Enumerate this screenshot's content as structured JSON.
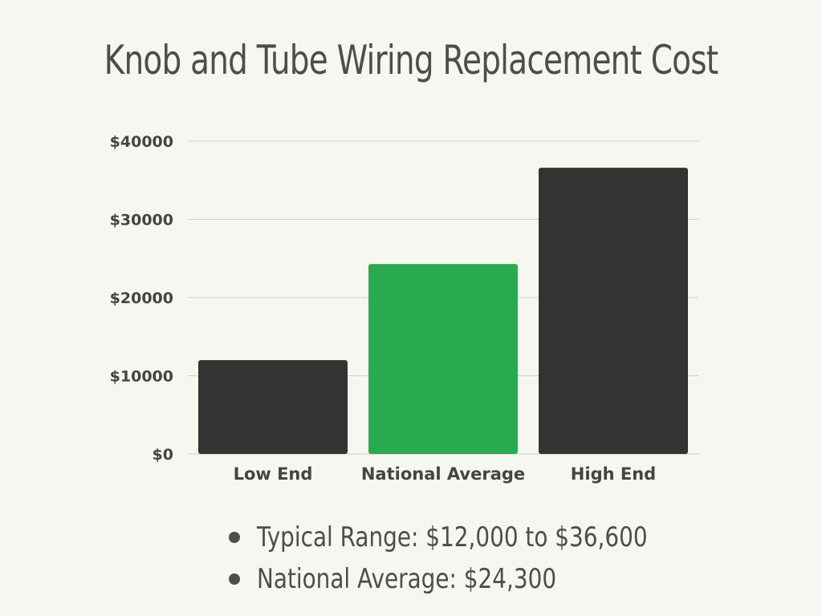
{
  "chart_data": {
    "type": "bar",
    "title": "Knob and Tube Wiring Replacement Cost",
    "xlabel": "",
    "ylabel": "",
    "categories": [
      "Low End",
      "National Average",
      "High End"
    ],
    "values": [
      12000,
      24300,
      36600
    ],
    "colors": [
      "#333333",
      "#2aaa4f",
      "#333333"
    ],
    "ylim": [
      0,
      40000
    ],
    "y_ticks": [
      0,
      10000,
      20000,
      30000,
      40000
    ],
    "y_tick_labels": [
      "$0",
      "$10000",
      "$20000",
      "$30000",
      "$40000"
    ],
    "grid": true,
    "legend": "none"
  },
  "notes": [
    "Typical Range: $12,000 to $36,600",
    "National Average: $24,300"
  ]
}
